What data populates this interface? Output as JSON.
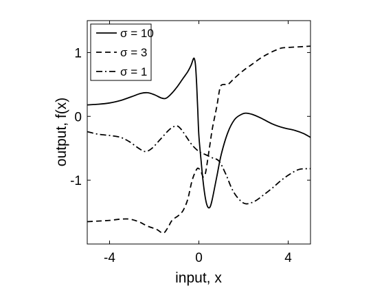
{
  "chart_data": {
    "type": "line",
    "title": "",
    "xlabel": "input, x",
    "ylabel": "output, f(x)",
    "xlim": [
      -5,
      5
    ],
    "ylim": [
      -2,
      1.5
    ],
    "xticks": [
      -4,
      0,
      4
    ],
    "xtick_labels": [
      "-4",
      "0",
      "4"
    ],
    "yticks": [
      1,
      0,
      -1
    ],
    "ytick_labels": [
      "1",
      "0",
      "-1"
    ],
    "grid": false,
    "legend_placement": "top-left",
    "series": [
      {
        "name": "σ = 10",
        "style": "solid",
        "points": [
          [
            -5,
            0.18
          ],
          [
            -4.5,
            0.19
          ],
          [
            -4,
            0.21
          ],
          [
            -3.5,
            0.25
          ],
          [
            -3,
            0.31
          ],
          [
            -2.6,
            0.36
          ],
          [
            -2.3,
            0.37
          ],
          [
            -2,
            0.34
          ],
          [
            -1.7,
            0.29
          ],
          [
            -1.5,
            0.28
          ],
          [
            -1.3,
            0.33
          ],
          [
            -1,
            0.45
          ],
          [
            -0.7,
            0.6
          ],
          [
            -0.5,
            0.7
          ],
          [
            -0.35,
            0.8
          ],
          [
            -0.25,
            0.9
          ],
          [
            -0.2,
            0.9
          ],
          [
            -0.15,
            0.8
          ],
          [
            -0.1,
            0.5
          ],
          [
            -0.05,
            0.1
          ],
          [
            0,
            -0.3
          ],
          [
            0.1,
            -0.7
          ],
          [
            0.2,
            -1.05
          ],
          [
            0.3,
            -1.3
          ],
          [
            0.4,
            -1.42
          ],
          [
            0.5,
            -1.42
          ],
          [
            0.6,
            -1.3
          ],
          [
            0.8,
            -0.95
          ],
          [
            1,
            -0.6
          ],
          [
            1.3,
            -0.25
          ],
          [
            1.6,
            -0.05
          ],
          [
            1.9,
            0.03
          ],
          [
            2.1,
            0.05
          ],
          [
            2.4,
            0.03
          ],
          [
            2.8,
            -0.03
          ],
          [
            3.3,
            -0.12
          ],
          [
            3.8,
            -0.18
          ],
          [
            4.3,
            -0.22
          ],
          [
            4.7,
            -0.27
          ],
          [
            5,
            -0.33
          ]
        ]
      },
      {
        "name": "σ = 3",
        "style": "dashed",
        "points": [
          [
            -5,
            -1.65
          ],
          [
            -4.5,
            -1.64
          ],
          [
            -4,
            -1.63
          ],
          [
            -3.5,
            -1.61
          ],
          [
            -3.1,
            -1.61
          ],
          [
            -2.7,
            -1.65
          ],
          [
            -2.3,
            -1.72
          ],
          [
            -1.9,
            -1.77
          ],
          [
            -1.6,
            -1.83
          ],
          [
            -1.4,
            -1.75
          ],
          [
            -1.2,
            -1.63
          ],
          [
            -0.9,
            -1.55
          ],
          [
            -0.7,
            -1.47
          ],
          [
            -0.5,
            -1.3
          ],
          [
            -0.3,
            -1.0
          ],
          [
            -0.1,
            -0.83
          ],
          [
            0,
            -0.82
          ],
          [
            0.1,
            -0.87
          ],
          [
            0.2,
            -0.95
          ],
          [
            0.3,
            -0.88
          ],
          [
            0.45,
            -0.55
          ],
          [
            0.6,
            -0.2
          ],
          [
            0.8,
            0.15
          ],
          [
            0.95,
            0.45
          ],
          [
            1.1,
            0.5
          ],
          [
            1.3,
            0.5
          ],
          [
            1.6,
            0.6
          ],
          [
            2,
            0.72
          ],
          [
            2.4,
            0.82
          ],
          [
            2.8,
            0.92
          ],
          [
            3.1,
            0.98
          ],
          [
            3.4,
            1.03
          ],
          [
            3.7,
            1.07
          ],
          [
            4,
            1.08
          ],
          [
            4.5,
            1.09
          ],
          [
            5,
            1.1
          ]
        ]
      },
      {
        "name": "σ = 1",
        "style": "dash-dot",
        "points": [
          [
            -5,
            -0.24
          ],
          [
            -4.5,
            -0.28
          ],
          [
            -4,
            -0.3
          ],
          [
            -3.5,
            -0.33
          ],
          [
            -3.1,
            -0.4
          ],
          [
            -2.7,
            -0.5
          ],
          [
            -2.4,
            -0.55
          ],
          [
            -2.1,
            -0.5
          ],
          [
            -1.7,
            -0.35
          ],
          [
            -1.3,
            -0.2
          ],
          [
            -1,
            -0.15
          ],
          [
            -0.8,
            -0.2
          ],
          [
            -0.6,
            -0.3
          ],
          [
            -0.3,
            -0.45
          ],
          [
            0,
            -0.55
          ],
          [
            0.3,
            -0.6
          ],
          [
            0.6,
            -0.65
          ],
          [
            0.9,
            -0.7
          ],
          [
            1.2,
            -0.9
          ],
          [
            1.5,
            -1.15
          ],
          [
            1.8,
            -1.3
          ],
          [
            2.1,
            -1.37
          ],
          [
            2.5,
            -1.33
          ],
          [
            2.9,
            -1.23
          ],
          [
            3.3,
            -1.12
          ],
          [
            3.7,
            -1.0
          ],
          [
            4.1,
            -0.9
          ],
          [
            4.5,
            -0.83
          ],
          [
            5,
            -0.82
          ]
        ]
      }
    ]
  }
}
